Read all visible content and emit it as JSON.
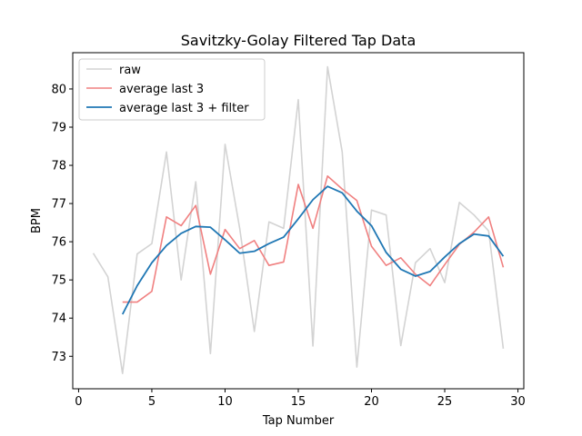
{
  "chart_data": {
    "type": "line",
    "title": "Savitzky-Golay Filtered Tap Data",
    "xlabel": "Tap Number",
    "ylabel": "BPM",
    "xlim": [
      -0.4,
      30.4
    ],
    "ylim": [
      72.15,
      80.95
    ],
    "xticks": [
      0,
      5,
      10,
      15,
      20,
      25,
      30
    ],
    "yticks": [
      73,
      74,
      75,
      76,
      77,
      78,
      79,
      80
    ],
    "grid": false,
    "legend_position": "top-left",
    "series": [
      {
        "name": "raw",
        "color": "#d3d3d3",
        "x": [
          1,
          2,
          3,
          4,
          5,
          6,
          7,
          8,
          9,
          10,
          11,
          12,
          13,
          14,
          15,
          16,
          17,
          18,
          19,
          20,
          21,
          22,
          23,
          24,
          25,
          26,
          27,
          28,
          29
        ],
        "values": [
          75.7,
          75.08,
          72.55,
          75.68,
          75.95,
          78.35,
          75.0,
          77.57,
          73.07,
          78.55,
          76.35,
          73.65,
          76.52,
          76.35,
          79.72,
          73.27,
          80.58,
          78.35,
          72.72,
          76.83,
          76.7,
          73.28,
          75.45,
          75.82,
          74.93,
          77.03,
          76.7,
          76.28,
          73.2
        ]
      },
      {
        "name": "average last 3",
        "color": "#f08080",
        "x": [
          3,
          4,
          5,
          6,
          7,
          8,
          9,
          10,
          11,
          12,
          13,
          14,
          15,
          16,
          17,
          18,
          19,
          20,
          21,
          22,
          23,
          24,
          25,
          26,
          27,
          28,
          29
        ],
        "values": [
          74.42,
          74.42,
          74.7,
          76.65,
          76.42,
          76.95,
          75.15,
          76.32,
          75.82,
          76.03,
          75.38,
          75.47,
          77.5,
          76.35,
          77.72,
          77.38,
          77.08,
          75.88,
          75.38,
          75.58,
          75.15,
          74.85,
          75.4,
          75.93,
          76.25,
          76.65,
          75.33
        ]
      },
      {
        "name": "average last 3 + filter",
        "color": "#1f77b4",
        "x": [
          3,
          4,
          5,
          6,
          7,
          8,
          9,
          10,
          11,
          12,
          13,
          14,
          15,
          16,
          17,
          18,
          19,
          20,
          21,
          22,
          23,
          24,
          25,
          26,
          27,
          28,
          29
        ],
        "values": [
          74.1,
          74.85,
          75.45,
          75.9,
          76.22,
          76.4,
          76.38,
          76.05,
          75.7,
          75.75,
          75.95,
          76.12,
          76.6,
          77.1,
          77.45,
          77.28,
          76.8,
          76.42,
          75.72,
          75.28,
          75.1,
          75.22,
          75.6,
          75.95,
          76.2,
          76.15,
          75.62
        ]
      }
    ]
  }
}
